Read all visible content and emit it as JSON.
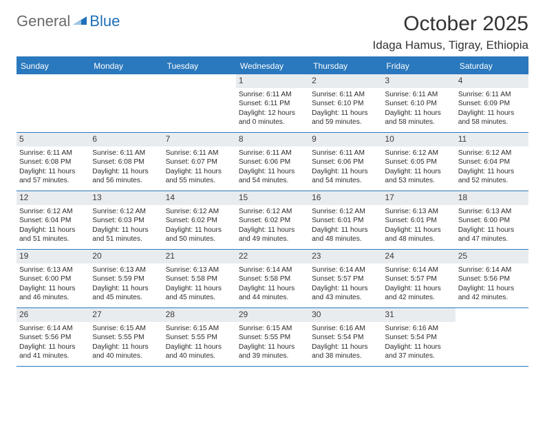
{
  "logo": {
    "general": "General",
    "blue": "Blue"
  },
  "title": "October 2025",
  "location": "Idaga Hamus, Tigray, Ethiopia",
  "colors": {
    "header_bg": "#2a78bd",
    "header_text": "#ffffff",
    "daynum_bg": "#e9ecef",
    "rule": "#2a78bd",
    "body_text": "#2b2b2b",
    "title_text": "#333333",
    "logo_gray": "#6a6a6a",
    "logo_blue": "#1e6fb8"
  },
  "daysOfWeek": [
    "Sunday",
    "Monday",
    "Tuesday",
    "Wednesday",
    "Thursday",
    "Friday",
    "Saturday"
  ],
  "weeks": [
    [
      {
        "empty": true
      },
      {
        "empty": true
      },
      {
        "empty": true
      },
      {
        "n": "1",
        "sr": "6:11 AM",
        "ss": "6:11 PM",
        "dl": "12 hours and 0 minutes."
      },
      {
        "n": "2",
        "sr": "6:11 AM",
        "ss": "6:10 PM",
        "dl": "11 hours and 59 minutes."
      },
      {
        "n": "3",
        "sr": "6:11 AM",
        "ss": "6:10 PM",
        "dl": "11 hours and 58 minutes."
      },
      {
        "n": "4",
        "sr": "6:11 AM",
        "ss": "6:09 PM",
        "dl": "11 hours and 58 minutes."
      }
    ],
    [
      {
        "n": "5",
        "sr": "6:11 AM",
        "ss": "6:08 PM",
        "dl": "11 hours and 57 minutes."
      },
      {
        "n": "6",
        "sr": "6:11 AM",
        "ss": "6:08 PM",
        "dl": "11 hours and 56 minutes."
      },
      {
        "n": "7",
        "sr": "6:11 AM",
        "ss": "6:07 PM",
        "dl": "11 hours and 55 minutes."
      },
      {
        "n": "8",
        "sr": "6:11 AM",
        "ss": "6:06 PM",
        "dl": "11 hours and 54 minutes."
      },
      {
        "n": "9",
        "sr": "6:11 AM",
        "ss": "6:06 PM",
        "dl": "11 hours and 54 minutes."
      },
      {
        "n": "10",
        "sr": "6:12 AM",
        "ss": "6:05 PM",
        "dl": "11 hours and 53 minutes."
      },
      {
        "n": "11",
        "sr": "6:12 AM",
        "ss": "6:04 PM",
        "dl": "11 hours and 52 minutes."
      }
    ],
    [
      {
        "n": "12",
        "sr": "6:12 AM",
        "ss": "6:04 PM",
        "dl": "11 hours and 51 minutes."
      },
      {
        "n": "13",
        "sr": "6:12 AM",
        "ss": "6:03 PM",
        "dl": "11 hours and 51 minutes."
      },
      {
        "n": "14",
        "sr": "6:12 AM",
        "ss": "6:02 PM",
        "dl": "11 hours and 50 minutes."
      },
      {
        "n": "15",
        "sr": "6:12 AM",
        "ss": "6:02 PM",
        "dl": "11 hours and 49 minutes."
      },
      {
        "n": "16",
        "sr": "6:12 AM",
        "ss": "6:01 PM",
        "dl": "11 hours and 48 minutes."
      },
      {
        "n": "17",
        "sr": "6:13 AM",
        "ss": "6:01 PM",
        "dl": "11 hours and 48 minutes."
      },
      {
        "n": "18",
        "sr": "6:13 AM",
        "ss": "6:00 PM",
        "dl": "11 hours and 47 minutes."
      }
    ],
    [
      {
        "n": "19",
        "sr": "6:13 AM",
        "ss": "6:00 PM",
        "dl": "11 hours and 46 minutes."
      },
      {
        "n": "20",
        "sr": "6:13 AM",
        "ss": "5:59 PM",
        "dl": "11 hours and 45 minutes."
      },
      {
        "n": "21",
        "sr": "6:13 AM",
        "ss": "5:58 PM",
        "dl": "11 hours and 45 minutes."
      },
      {
        "n": "22",
        "sr": "6:14 AM",
        "ss": "5:58 PM",
        "dl": "11 hours and 44 minutes."
      },
      {
        "n": "23",
        "sr": "6:14 AM",
        "ss": "5:57 PM",
        "dl": "11 hours and 43 minutes."
      },
      {
        "n": "24",
        "sr": "6:14 AM",
        "ss": "5:57 PM",
        "dl": "11 hours and 42 minutes."
      },
      {
        "n": "25",
        "sr": "6:14 AM",
        "ss": "5:56 PM",
        "dl": "11 hours and 42 minutes."
      }
    ],
    [
      {
        "n": "26",
        "sr": "6:14 AM",
        "ss": "5:56 PM",
        "dl": "11 hours and 41 minutes."
      },
      {
        "n": "27",
        "sr": "6:15 AM",
        "ss": "5:55 PM",
        "dl": "11 hours and 40 minutes."
      },
      {
        "n": "28",
        "sr": "6:15 AM",
        "ss": "5:55 PM",
        "dl": "11 hours and 40 minutes."
      },
      {
        "n": "29",
        "sr": "6:15 AM",
        "ss": "5:55 PM",
        "dl": "11 hours and 39 minutes."
      },
      {
        "n": "30",
        "sr": "6:16 AM",
        "ss": "5:54 PM",
        "dl": "11 hours and 38 minutes."
      },
      {
        "n": "31",
        "sr": "6:16 AM",
        "ss": "5:54 PM",
        "dl": "11 hours and 37 minutes."
      },
      {
        "empty": true
      }
    ]
  ],
  "labels": {
    "sunrise": "Sunrise: ",
    "sunset": "Sunset: ",
    "daylight": "Daylight: "
  }
}
